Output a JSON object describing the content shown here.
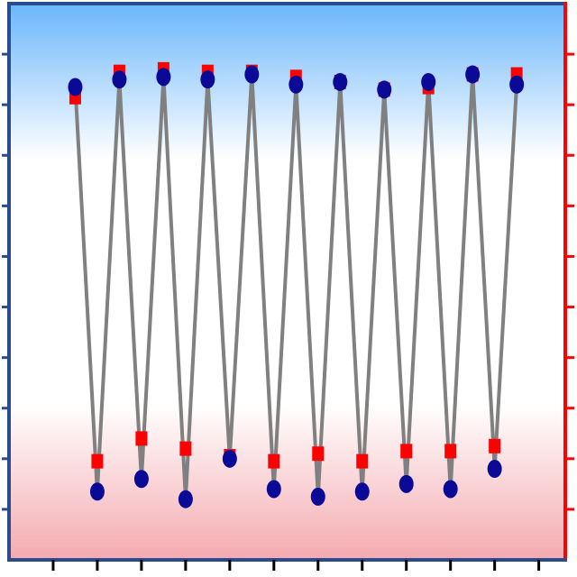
{
  "chart_data": {
    "type": "line",
    "title": "",
    "xlabel": "",
    "ylabel_left": "",
    "ylabel_right": "",
    "xlim": [
      0,
      12.6
    ],
    "ylim": [
      0,
      11
    ],
    "grid": false,
    "legend": "none",
    "left_axis_ticks": 11,
    "bottom_axis_ticks": 12,
    "x": [
      1.5,
      2.0,
      2.5,
      3.0,
      3.5,
      4.0,
      4.5,
      5.0,
      5.5,
      6.0,
      6.5,
      7.0,
      7.5,
      8.0,
      8.5,
      9.0,
      9.5,
      10.0,
      10.5,
      11.0,
      11.5
    ],
    "series": [
      {
        "marker": "square",
        "color": "#ff0000",
        "values": [
          9.15,
          1.95,
          9.65,
          2.4,
          9.7,
          2.2,
          9.65,
          2.05,
          9.65,
          1.95,
          9.55,
          2.1,
          9.45,
          1.95,
          9.3,
          2.15,
          9.35,
          2.15,
          9.6,
          2.25,
          9.6
        ]
      },
      {
        "marker": "circle",
        "color": "#0a0a96",
        "values": [
          9.35,
          1.35,
          9.5,
          1.6,
          9.55,
          1.2,
          9.5,
          2.0,
          9.6,
          1.4,
          9.4,
          1.25,
          9.45,
          1.35,
          9.3,
          1.5,
          9.45,
          1.4,
          9.6,
          1.8,
          9.4
        ]
      }
    ],
    "colors": {
      "left_axis": "#2b4c8c",
      "right_axis": "#ff0000",
      "connector_line": "#808080",
      "background_top": "#6ab6fb",
      "background_bottom": "#f4aab0"
    }
  }
}
